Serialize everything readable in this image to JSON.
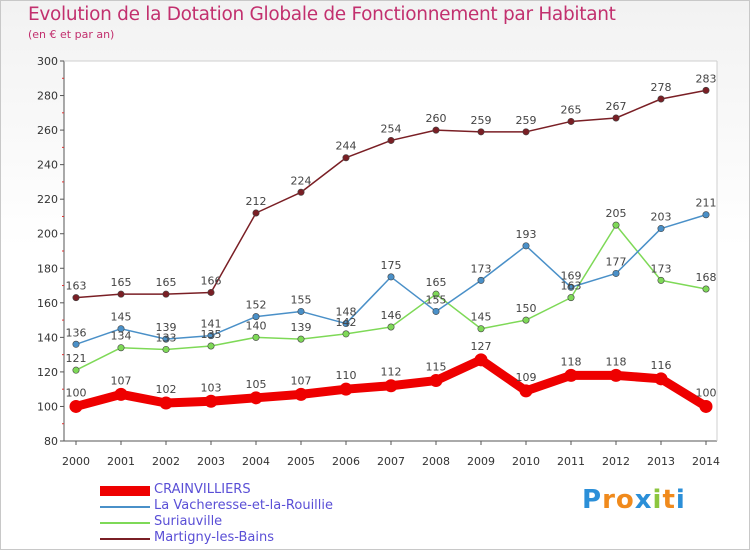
{
  "title": "Evolution de la Dotation Globale de Fonctionnement par Habitant",
  "subtitle": "(en € et par an)",
  "brand": {
    "letters": [
      "P",
      "r",
      "o",
      "x",
      "i",
      "t",
      "i"
    ],
    "colors": [
      "#2b8fd8",
      "#f08a1c",
      "#f08a1c",
      "#2b8fd8",
      "#8cc63f",
      "#f08a1c",
      "#2b8fd8"
    ]
  },
  "chart_data": {
    "type": "line",
    "x": [
      2000,
      2001,
      2002,
      2003,
      2004,
      2005,
      2006,
      2007,
      2008,
      2009,
      2010,
      2011,
      2012,
      2013,
      2014
    ],
    "ylim": [
      80,
      300
    ],
    "yticks": [
      80,
      100,
      120,
      140,
      160,
      180,
      200,
      220,
      240,
      260,
      280,
      300
    ],
    "grid": false,
    "legend": "bottom",
    "series": [
      {
        "name": "CRAINVILLIERS",
        "color": "#ee0000",
        "values": [
          100,
          107,
          102,
          103,
          105,
          107,
          110,
          112,
          115,
          127,
          109,
          118,
          118,
          116,
          100
        ]
      },
      {
        "name": "La Vacheresse-et-la-Rouillie",
        "color": "#4a90c8",
        "values": [
          136,
          145,
          139,
          141,
          152,
          155,
          148,
          175,
          155,
          173,
          193,
          169,
          177,
          203,
          211
        ]
      },
      {
        "name": "Suriauville",
        "color": "#7ed957",
        "values": [
          121,
          134,
          133,
          135,
          140,
          139,
          142,
          146,
          165,
          145,
          150,
          163,
          205,
          173,
          168
        ]
      },
      {
        "name": "Martigny-les-Bains",
        "color": "#7a1f25",
        "values": [
          163,
          165,
          165,
          166,
          212,
          224,
          244,
          254,
          260,
          259,
          259,
          265,
          267,
          278,
          283
        ]
      }
    ]
  }
}
